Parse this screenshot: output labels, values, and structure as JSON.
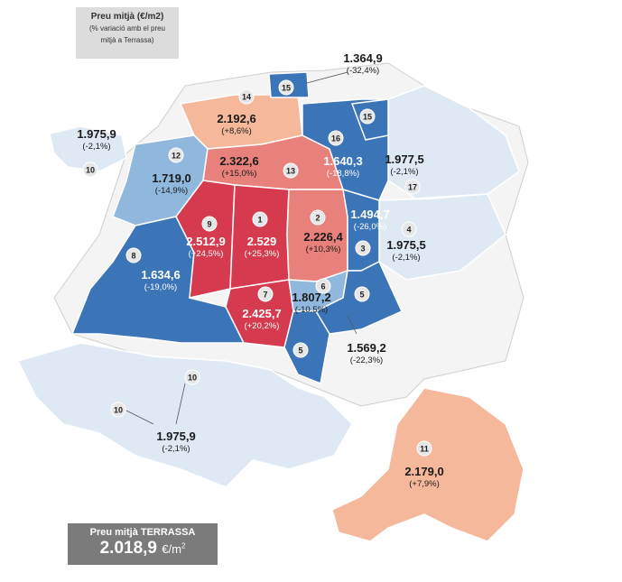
{
  "legend": {
    "title": "Preu mitjà (€/m2)",
    "subtitle_line1": "(% variació  amb el preu",
    "subtitle_line2": "mitjà  a Terrassa)"
  },
  "total": {
    "label": "Preu mitjà TERRASSA",
    "value": "2.018,9",
    "unit": "€/m",
    "unit_exp": "2"
  },
  "colors": {
    "dark_red": "#d53a4f",
    "mid_red": "#e8817b",
    "light_salmon": "#f6b89b",
    "dark_blue": "#3b75b8",
    "mid_blue": "#8fb8dc",
    "light_blue": "#dfe9f4"
  },
  "districts": [
    {
      "id": "1",
      "price": "2.529",
      "variation": "(+25,3%)"
    },
    {
      "id": "2",
      "price": "2.226,4",
      "variation": "(+10,3%)"
    },
    {
      "id": "3",
      "price": "1.494,7",
      "variation": "(-26,0%)"
    },
    {
      "id": "4",
      "price": "1.975,5",
      "variation": "(-2,1%)"
    },
    {
      "id": "5",
      "price": "1.569,2",
      "variation": "(-22,3%)"
    },
    {
      "id": "6",
      "price": "1.807,2",
      "variation": "(-10,5%)"
    },
    {
      "id": "7",
      "price": "2.425,7",
      "variation": "(+20,2%)"
    },
    {
      "id": "8",
      "price": "1.634,6",
      "variation": "(-19,0%)"
    },
    {
      "id": "9",
      "price": "2.512,9",
      "variation": "(+24,5%)"
    },
    {
      "id": "10",
      "price": "1.975,9",
      "variation": "(-2,1%)"
    },
    {
      "id": "11",
      "price": "2.179,0",
      "variation": "(+7,9%)"
    },
    {
      "id": "12",
      "price": "1.719,0",
      "variation": "(-14,9%)"
    },
    {
      "id": "13",
      "price": "2.322,6",
      "variation": "(+15,0%)"
    },
    {
      "id": "14",
      "price": "2.192,6",
      "variation": "(+8,6%)"
    },
    {
      "id": "15",
      "price": "1.364,9",
      "variation": "(-32,4%)"
    },
    {
      "id": "16",
      "price": "1.640,3",
      "variation": "(-18,8%)"
    },
    {
      "id": "17",
      "price": "1.977,5",
      "variation": "(-2,1%)"
    }
  ],
  "extra_labels": [
    {
      "text": "1.975,9",
      "sub": "(-2,1%)",
      "ref": "10"
    }
  ],
  "markers": [
    "1",
    "2",
    "3",
    "4",
    "5",
    "5",
    "6",
    "7",
    "8",
    "9",
    "10",
    "10",
    "10",
    "11",
    "12",
    "13",
    "14",
    "15",
    "15",
    "16",
    "17"
  ]
}
